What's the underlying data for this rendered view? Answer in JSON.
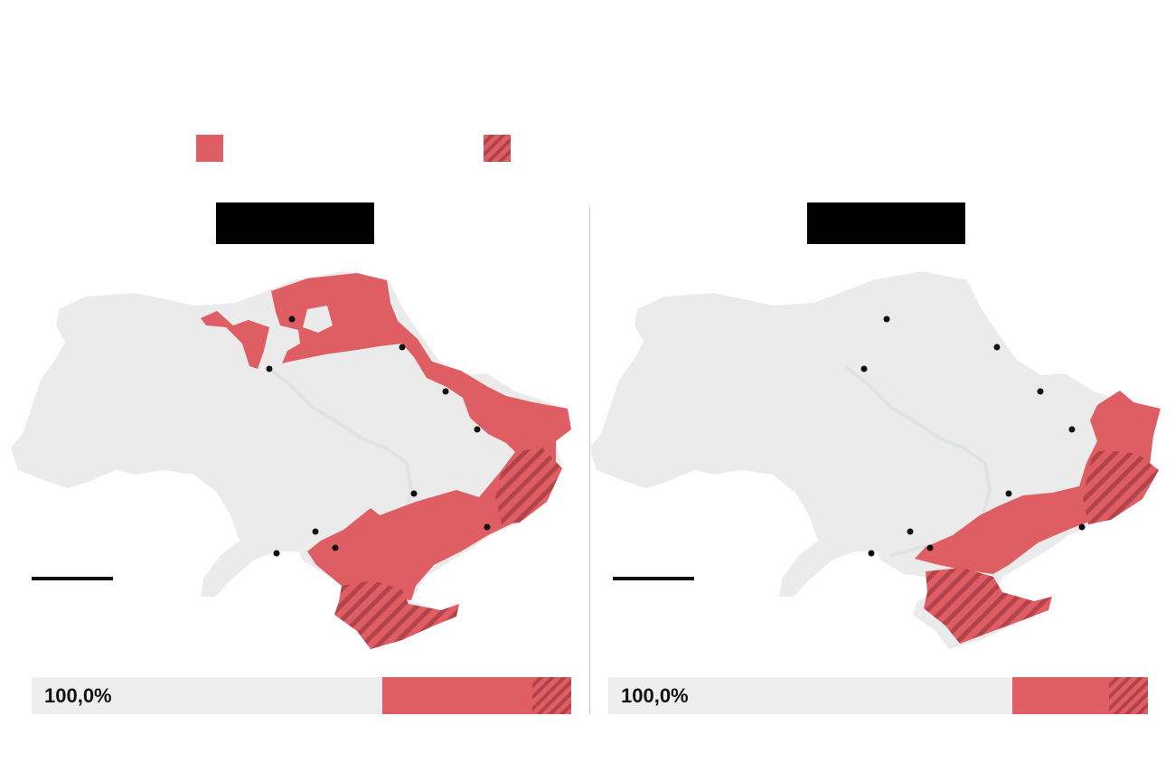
{
  "legend": {
    "occupied_color": "#de5e63",
    "held_color": "#b3434a"
  },
  "colors": {
    "land": "#ebebeb",
    "river": "#dfe3e3",
    "city": "#111111"
  },
  "maps": [
    {
      "date": "",
      "share_total": "100,0%",
      "share_occupied_fraction": 0.278,
      "share_held_fraction": 0.072
    },
    {
      "date": "",
      "share_total": "100,0%",
      "share_occupied_fraction": 0.18,
      "share_held_fraction": 0.072
    }
  ]
}
